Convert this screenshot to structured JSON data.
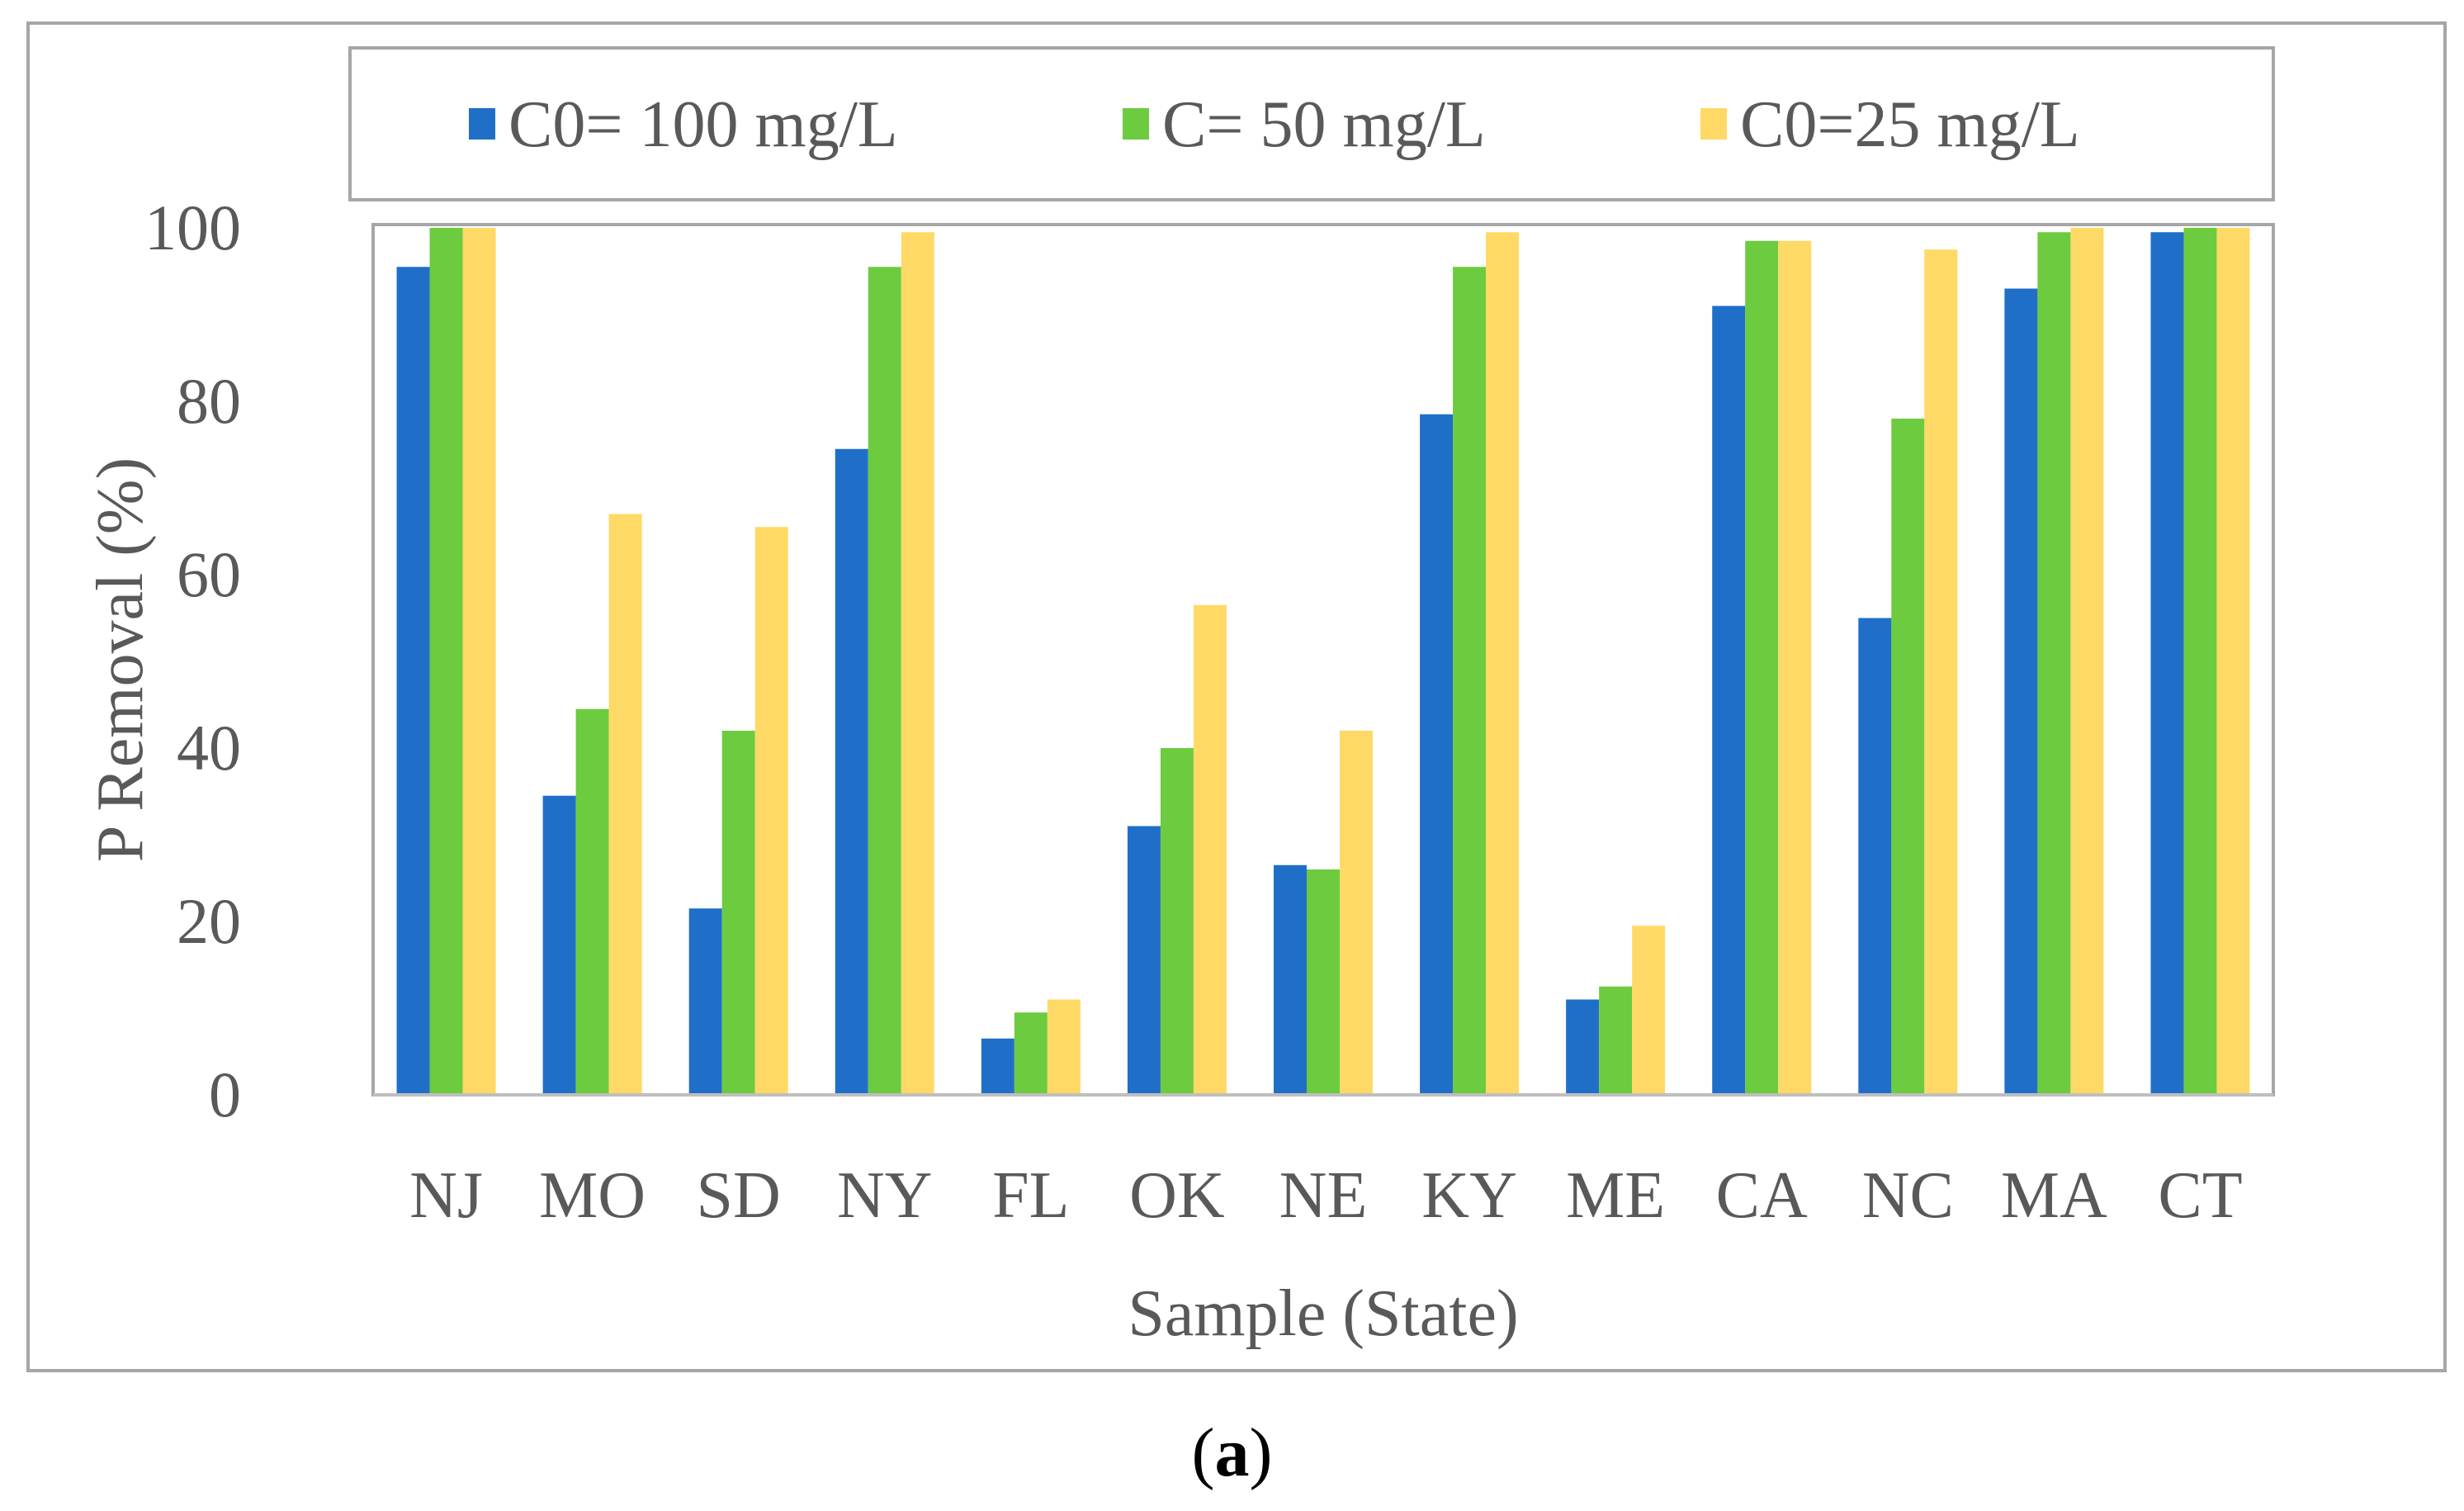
{
  "figure": {
    "panel_open": "(",
    "panel_letter": "a",
    "panel_close": ")"
  },
  "chart_data": {
    "type": "bar",
    "title": "",
    "xlabel": "Sample (State)",
    "ylabel": "P Removal (%)",
    "ylim": [
      0,
      100
    ],
    "yticks": [
      0,
      20,
      40,
      60,
      80,
      100
    ],
    "grid": false,
    "legend_position": "top",
    "categories": [
      "NJ",
      "MO",
      "SD",
      "NY",
      "FL",
      "OK",
      "NE",
      "KY",
      "ME",
      "CA",
      "NC",
      "MA",
      "CT"
    ],
    "series": [
      {
        "name": "C0= 100 mg/L",
        "color": "#1f6fc9",
        "values": [
          95.5,
          34.5,
          21.5,
          74.5,
          6.5,
          31,
          26.5,
          78.5,
          11,
          91,
          55,
          93,
          99.5
        ]
      },
      {
        "name": "C= 50 mg/L",
        "color": "#6ccb3e",
        "values": [
          100,
          44.5,
          42,
          95.5,
          9.5,
          40,
          26,
          95.5,
          12.5,
          98.5,
          78,
          99.5,
          100
        ]
      },
      {
        "name": "C0=25 mg/L",
        "color": "#ffd966",
        "values": [
          100,
          67,
          65.5,
          99.5,
          11,
          56.5,
          42,
          99.5,
          19.5,
          98.5,
          97.5,
          100,
          100
        ]
      }
    ]
  }
}
